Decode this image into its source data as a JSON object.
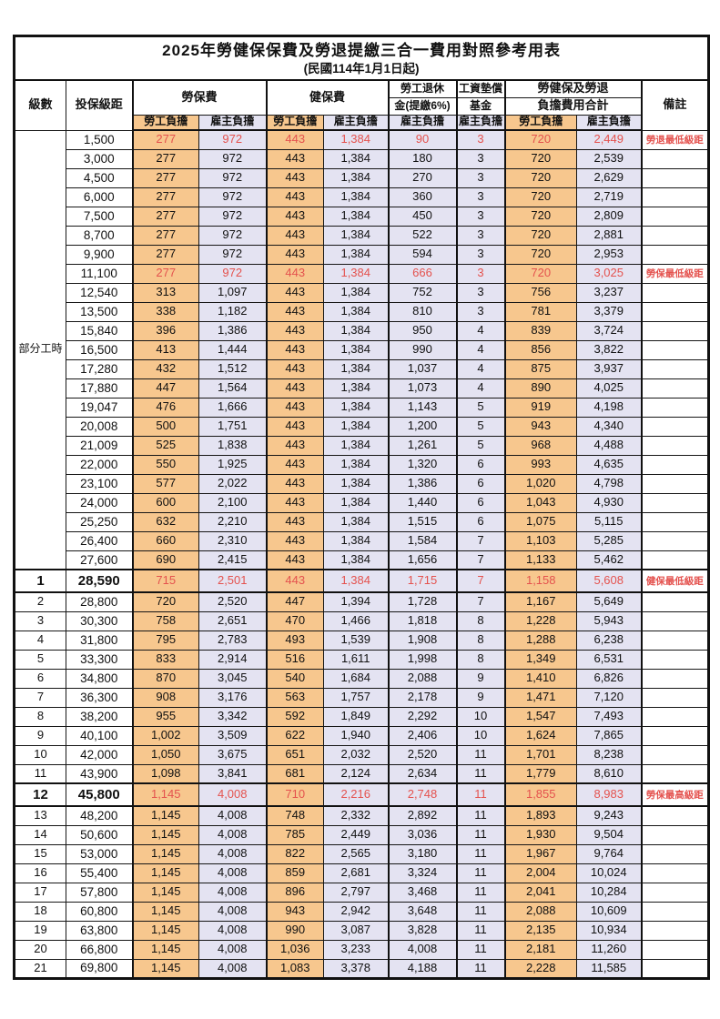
{
  "title": "2025年勞健保保費及勞退提繳三合一費用對照參考用表",
  "subtitle": "(民國114年1月1日起)",
  "colors": {
    "employee_bg": "#F7C78E",
    "employer_bg": "#E4E3F2",
    "highlight_text": "#E4524E",
    "border": "#111111"
  },
  "header": {
    "level": "級數",
    "bracket": "投保級距",
    "labor_insurance": "勞保費",
    "health_insurance": "健保費",
    "pension_line1": "勞工退休",
    "pension_line2": "金(提繳6%)",
    "wage_fund_line1": "工資墊償",
    "wage_fund_line2": "基金",
    "total_line1": "勞健保及勞退",
    "total_line2": "負擔費用合計",
    "employee": "勞工負擔",
    "employer": "雇主負擔",
    "remark": "備註"
  },
  "table": {
    "part_time_label": "部分工時",
    "part_time_rowspan": 23,
    "row_fields": [
      "level",
      "bracket",
      "li_emp",
      "li_er",
      "hi_emp",
      "hi_er",
      "pension",
      "wage_fund",
      "tot_emp",
      "tot_er",
      "remark",
      "hl",
      "big"
    ],
    "rows": [
      [
        "",
        "1,500",
        "277",
        "972",
        "443",
        "1,384",
        "90",
        "3",
        "720",
        "2,449",
        "勞退最低級距",
        1,
        0
      ],
      [
        "",
        "3,000",
        "277",
        "972",
        "443",
        "1,384",
        "180",
        "3",
        "720",
        "2,539",
        "",
        0,
        0
      ],
      [
        "",
        "4,500",
        "277",
        "972",
        "443",
        "1,384",
        "270",
        "3",
        "720",
        "2,629",
        "",
        0,
        0
      ],
      [
        "",
        "6,000",
        "277",
        "972",
        "443",
        "1,384",
        "360",
        "3",
        "720",
        "2,719",
        "",
        0,
        0
      ],
      [
        "",
        "7,500",
        "277",
        "972",
        "443",
        "1,384",
        "450",
        "3",
        "720",
        "2,809",
        "",
        0,
        0
      ],
      [
        "",
        "8,700",
        "277",
        "972",
        "443",
        "1,384",
        "522",
        "3",
        "720",
        "2,881",
        "",
        0,
        0
      ],
      [
        "",
        "9,900",
        "277",
        "972",
        "443",
        "1,384",
        "594",
        "3",
        "720",
        "2,953",
        "",
        0,
        0
      ],
      [
        "",
        "11,100",
        "277",
        "972",
        "443",
        "1,384",
        "666",
        "3",
        "720",
        "3,025",
        "勞保最低級距",
        1,
        0
      ],
      [
        "",
        "12,540",
        "313",
        "1,097",
        "443",
        "1,384",
        "752",
        "3",
        "756",
        "3,237",
        "",
        0,
        0
      ],
      [
        "",
        "13,500",
        "338",
        "1,182",
        "443",
        "1,384",
        "810",
        "3",
        "781",
        "3,379",
        "",
        0,
        0
      ],
      [
        "",
        "15,840",
        "396",
        "1,386",
        "443",
        "1,384",
        "950",
        "4",
        "839",
        "3,724",
        "",
        0,
        0
      ],
      [
        "",
        "16,500",
        "413",
        "1,444",
        "443",
        "1,384",
        "990",
        "4",
        "856",
        "3,822",
        "",
        0,
        0
      ],
      [
        "",
        "17,280",
        "432",
        "1,512",
        "443",
        "1,384",
        "1,037",
        "4",
        "875",
        "3,937",
        "",
        0,
        0
      ],
      [
        "",
        "17,880",
        "447",
        "1,564",
        "443",
        "1,384",
        "1,073",
        "4",
        "890",
        "4,025",
        "",
        0,
        0
      ],
      [
        "",
        "19,047",
        "476",
        "1,666",
        "443",
        "1,384",
        "1,143",
        "5",
        "919",
        "4,198",
        "",
        0,
        0
      ],
      [
        "",
        "20,008",
        "500",
        "1,751",
        "443",
        "1,384",
        "1,200",
        "5",
        "943",
        "4,340",
        "",
        0,
        0
      ],
      [
        "",
        "21,009",
        "525",
        "1,838",
        "443",
        "1,384",
        "1,261",
        "5",
        "968",
        "4,488",
        "",
        0,
        0
      ],
      [
        "",
        "22,000",
        "550",
        "1,925",
        "443",
        "1,384",
        "1,320",
        "6",
        "993",
        "4,635",
        "",
        0,
        0
      ],
      [
        "",
        "23,100",
        "577",
        "2,022",
        "443",
        "1,384",
        "1,386",
        "6",
        "1,020",
        "4,798",
        "",
        0,
        0
      ],
      [
        "",
        "24,000",
        "600",
        "2,100",
        "443",
        "1,384",
        "1,440",
        "6",
        "1,043",
        "4,930",
        "",
        0,
        0
      ],
      [
        "",
        "25,250",
        "632",
        "2,210",
        "443",
        "1,384",
        "1,515",
        "6",
        "1,075",
        "5,115",
        "",
        0,
        0
      ],
      [
        "",
        "26,400",
        "660",
        "2,310",
        "443",
        "1,384",
        "1,584",
        "7",
        "1,103",
        "5,285",
        "",
        0,
        0
      ],
      [
        "",
        "27,600",
        "690",
        "2,415",
        "443",
        "1,384",
        "1,656",
        "7",
        "1,133",
        "5,462",
        "",
        0,
        0
      ],
      [
        "1",
        "28,590",
        "715",
        "2,501",
        "443",
        "1,384",
        "1,715",
        "7",
        "1,158",
        "5,608",
        "健保最低級距",
        1,
        1
      ],
      [
        "2",
        "28,800",
        "720",
        "2,520",
        "447",
        "1,394",
        "1,728",
        "7",
        "1,167",
        "5,649",
        "",
        0,
        0
      ],
      [
        "3",
        "30,300",
        "758",
        "2,651",
        "470",
        "1,466",
        "1,818",
        "8",
        "1,228",
        "5,943",
        "",
        0,
        0
      ],
      [
        "4",
        "31,800",
        "795",
        "2,783",
        "493",
        "1,539",
        "1,908",
        "8",
        "1,288",
        "6,238",
        "",
        0,
        0
      ],
      [
        "5",
        "33,300",
        "833",
        "2,914",
        "516",
        "1,611",
        "1,998",
        "8",
        "1,349",
        "6,531",
        "",
        0,
        0
      ],
      [
        "6",
        "34,800",
        "870",
        "3,045",
        "540",
        "1,684",
        "2,088",
        "9",
        "1,410",
        "6,826",
        "",
        0,
        0
      ],
      [
        "7",
        "36,300",
        "908",
        "3,176",
        "563",
        "1,757",
        "2,178",
        "9",
        "1,471",
        "7,120",
        "",
        0,
        0
      ],
      [
        "8",
        "38,200",
        "955",
        "3,342",
        "592",
        "1,849",
        "2,292",
        "10",
        "1,547",
        "7,493",
        "",
        0,
        0
      ],
      [
        "9",
        "40,100",
        "1,002",
        "3,509",
        "622",
        "1,940",
        "2,406",
        "10",
        "1,624",
        "7,865",
        "",
        0,
        0
      ],
      [
        "10",
        "42,000",
        "1,050",
        "3,675",
        "651",
        "2,032",
        "2,520",
        "11",
        "1,701",
        "8,238",
        "",
        0,
        0
      ],
      [
        "11",
        "43,900",
        "1,098",
        "3,841",
        "681",
        "2,124",
        "2,634",
        "11",
        "1,779",
        "8,610",
        "",
        0,
        0
      ],
      [
        "12",
        "45,800",
        "1,145",
        "4,008",
        "710",
        "2,216",
        "2,748",
        "11",
        "1,855",
        "8,983",
        "勞保最高級距",
        1,
        1
      ],
      [
        "13",
        "48,200",
        "1,145",
        "4,008",
        "748",
        "2,332",
        "2,892",
        "11",
        "1,893",
        "9,243",
        "",
        0,
        0
      ],
      [
        "14",
        "50,600",
        "1,145",
        "4,008",
        "785",
        "2,449",
        "3,036",
        "11",
        "1,930",
        "9,504",
        "",
        0,
        0
      ],
      [
        "15",
        "53,000",
        "1,145",
        "4,008",
        "822",
        "2,565",
        "3,180",
        "11",
        "1,967",
        "9,764",
        "",
        0,
        0
      ],
      [
        "16",
        "55,400",
        "1,145",
        "4,008",
        "859",
        "2,681",
        "3,324",
        "11",
        "2,004",
        "10,024",
        "",
        0,
        0
      ],
      [
        "17",
        "57,800",
        "1,145",
        "4,008",
        "896",
        "2,797",
        "3,468",
        "11",
        "2,041",
        "10,284",
        "",
        0,
        0
      ],
      [
        "18",
        "60,800",
        "1,145",
        "4,008",
        "943",
        "2,942",
        "3,648",
        "11",
        "2,088",
        "10,609",
        "",
        0,
        0
      ],
      [
        "19",
        "63,800",
        "1,145",
        "4,008",
        "990",
        "3,087",
        "3,828",
        "11",
        "2,135",
        "10,934",
        "",
        0,
        0
      ],
      [
        "20",
        "66,800",
        "1,145",
        "4,008",
        "1,036",
        "3,233",
        "4,008",
        "11",
        "2,181",
        "11,260",
        "",
        0,
        0
      ],
      [
        "21",
        "69,800",
        "1,145",
        "4,008",
        "1,083",
        "3,378",
        "4,188",
        "11",
        "2,228",
        "11,585",
        "",
        0,
        0
      ]
    ]
  }
}
